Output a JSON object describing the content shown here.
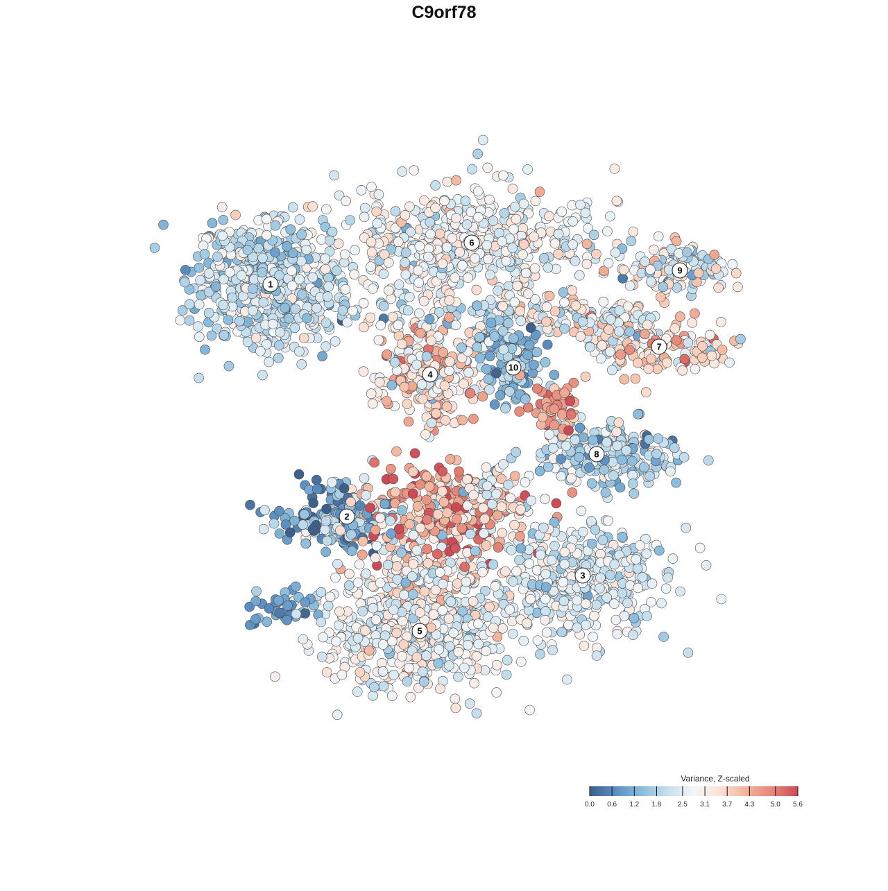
{
  "chart_data": {
    "type": "scatter",
    "title": "C9orf78",
    "xlabel": "",
    "ylabel": "",
    "grid": false,
    "axes": "hidden",
    "legend_placement": "bottom-right",
    "legend": {
      "title": "Variance, Z-scaled",
      "ticks": [
        "0.0",
        "0.6",
        "1.2",
        "1.8",
        "2.5",
        "3.1",
        "3.7",
        "4.3",
        "5.0",
        "5.6"
      ],
      "range": [
        0.0,
        5.6
      ],
      "colors": [
        "#3d5f8c",
        "#5b8fc1",
        "#8bbcdc",
        "#c6dfed",
        "#f3f6f8",
        "#fbe2d6",
        "#f2b39b",
        "#e6877a",
        "#cc4a55"
      ]
    },
    "clusters": [
      {
        "id": "1",
        "x": -25.0,
        "y": 23.0,
        "sx": 7.0,
        "sy": 6.0,
        "n": 620,
        "mean": 2.2,
        "sd": 0.55
      },
      {
        "id": "2",
        "x": -14.0,
        "y": -10.5,
        "sx": 6.5,
        "sy": 3.5,
        "n": 180,
        "mean": 1.3,
        "sd": 1.0
      },
      {
        "id": "3",
        "x": 20.0,
        "y": -19.0,
        "sx": 8.0,
        "sy": 5.0,
        "n": 420,
        "mean": 2.4,
        "sd": 0.5
      },
      {
        "id": "4",
        "x": -2.0,
        "y": 10.0,
        "sx": 5.0,
        "sy": 4.5,
        "n": 240,
        "mean": 3.4,
        "sd": 0.9
      },
      {
        "id": "5",
        "x": -3.5,
        "y": -27.0,
        "sx": 9.0,
        "sy": 6.0,
        "n": 560,
        "mean": 2.7,
        "sd": 0.55
      },
      {
        "id": "6",
        "x": 4.0,
        "y": 29.0,
        "sx": 12.0,
        "sy": 5.0,
        "n": 520,
        "mean": 2.8,
        "sd": 0.55
      },
      {
        "id": "7",
        "x": 31.0,
        "y": 14.0,
        "sx": 8.0,
        "sy": 2.8,
        "n": 150,
        "mean": 3.5,
        "sd": 0.8
      },
      {
        "id": "8",
        "x": 22.0,
        "y": -1.5,
        "sx": 6.0,
        "sy": 3.0,
        "n": 160,
        "mean": 2.0,
        "sd": 0.7
      },
      {
        "id": "9",
        "x": 34.0,
        "y": 25.0,
        "sx": 5.0,
        "sy": 2.5,
        "n": 110,
        "mean": 2.9,
        "sd": 0.9
      },
      {
        "id": "10",
        "x": 10.0,
        "y": 11.0,
        "sx": 3.0,
        "sy": 4.0,
        "n": 90,
        "mean": 1.6,
        "sd": 0.6
      }
    ],
    "hotspot": {
      "x": 0.0,
      "y": -10.0,
      "sx": 8.0,
      "sy": 5.0,
      "n": 240,
      "mean": 4.5,
      "sd": 0.9
    },
    "bridges": [
      {
        "x": 0.0,
        "y": 18.5,
        "sx": 14.0,
        "sy": 2.0,
        "n": 120,
        "mean": 2.4,
        "sd": 0.7
      },
      {
        "x": 16.0,
        "y": 5.0,
        "sx": 2.5,
        "sy": 3.0,
        "n": 60,
        "mean": 4.5,
        "sd": 0.6
      },
      {
        "x": 22.0,
        "y": 18.0,
        "sx": 7.0,
        "sy": 2.0,
        "n": 90,
        "mean": 3.0,
        "sd": 0.8
      },
      {
        "x": 8.0,
        "y": 15.0,
        "sx": 3.0,
        "sy": 1.5,
        "n": 60,
        "mean": 1.3,
        "sd": 0.5
      },
      {
        "x": 28.0,
        "y": -2.0,
        "sx": 5.0,
        "sy": 3.0,
        "n": 60,
        "mean": 2.0,
        "sd": 0.5
      },
      {
        "x": 6.0,
        "y": -8.0,
        "sx": 5.0,
        "sy": 3.0,
        "n": 100,
        "mean": 3.0,
        "sd": 0.9
      },
      {
        "x": -3.0,
        "y": -19.0,
        "sx": 6.0,
        "sy": 3.0,
        "n": 110,
        "mean": 3.2,
        "sd": 0.7
      },
      {
        "x": -24.0,
        "y": -23.5,
        "sx": 3.5,
        "sy": 1.6,
        "n": 40,
        "mean": 0.9,
        "sd": 0.4
      }
    ]
  }
}
